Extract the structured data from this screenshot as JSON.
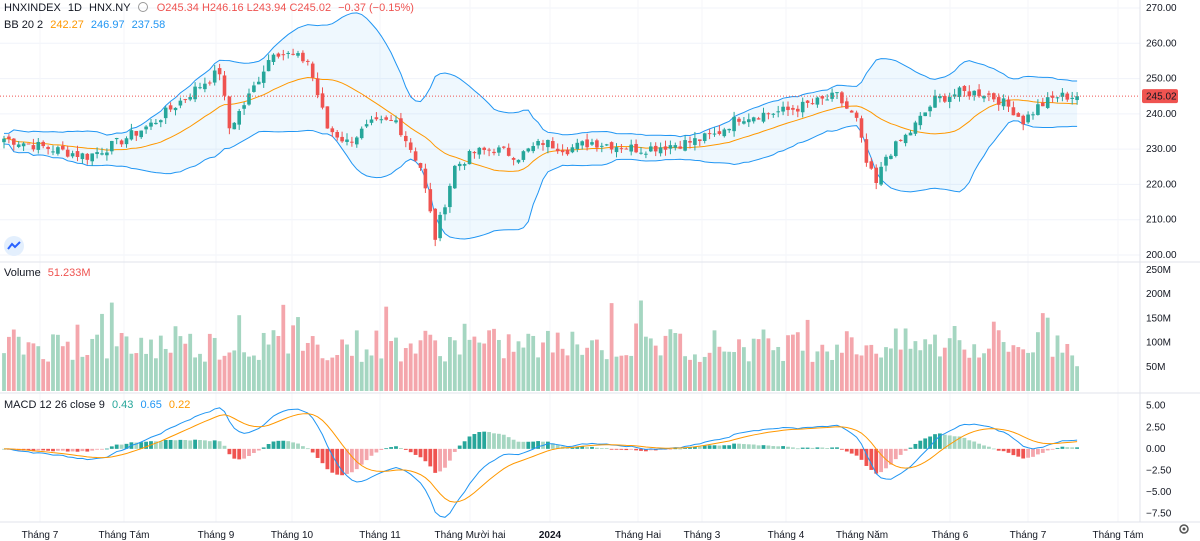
{
  "header": {
    "symbol": "HNXINDEX",
    "interval": "1D",
    "exchange": "HNX.NY",
    "open": "O245.34",
    "high": "H246.16",
    "low": "L243.94",
    "close": "C245.02",
    "change": "−0.37 (−0.15%)",
    "bb_label": "BB 20 2",
    "bb_mid": "242.27",
    "bb_upper": "246.97",
    "bb_lower": "237.58",
    "volume_label": "Volume",
    "volume_value": "51.233M",
    "macd_label": "MACD 12 26 close 9",
    "macd_hist": "0.43",
    "macd_line": "0.65",
    "macd_signal": "0.22",
    "price_badge": "245.02"
  },
  "colors": {
    "up": "#26a69a",
    "down": "#ef5350",
    "vol_up": "#a5d6c1",
    "vol_down": "#f4a6ac",
    "bb_band": "#2196f3",
    "bb_mid": "#ff9800",
    "macd_line": "#2196f3",
    "macd_signal": "#ff9800",
    "badge": "#ef5350"
  },
  "icons": {
    "logo": "tradingview-cloud-icon",
    "settings": "gear-icon"
  },
  "chart_data": [
    {
      "type": "candlestick",
      "title": "HNXINDEX 1D HNX.NY",
      "ylim": [
        200,
        270
      ],
      "y_ticks": [
        "270.00",
        "260.00",
        "250.00",
        "240.00",
        "230.00",
        "220.00",
        "210.00",
        "200.00"
      ],
      "x_ticks": [
        "Tháng 7",
        "Tháng Tám",
        "Tháng 9",
        "Tháng 10",
        "Tháng 11",
        "Tháng Mười hai",
        "2024",
        "Tháng Hai",
        "Tháng 3",
        "Tháng 4",
        "Tháng Năm",
        "Tháng 6",
        "Tháng 7",
        "Tháng Tám"
      ],
      "close_anchors": [
        [
          0,
          233
        ],
        [
          10,
          230
        ],
        [
          17,
          228
        ],
        [
          22,
          231
        ],
        [
          30,
          237
        ],
        [
          40,
          248
        ],
        [
          44,
          252
        ],
        [
          46,
          236
        ],
        [
          50,
          245
        ],
        [
          55,
          258
        ],
        [
          62,
          255
        ],
        [
          66,
          236
        ],
        [
          70,
          232
        ],
        [
          75,
          237
        ],
        [
          80,
          238
        ],
        [
          85,
          225
        ],
        [
          88,
          205
        ],
        [
          92,
          225
        ],
        [
          96,
          229
        ],
        [
          100,
          230
        ],
        [
          105,
          228
        ],
        [
          110,
          232
        ],
        [
          115,
          230
        ],
        [
          120,
          232
        ],
        [
          125,
          231
        ],
        [
          130,
          230
        ],
        [
          135,
          231
        ],
        [
          140,
          232
        ],
        [
          145,
          234
        ],
        [
          150,
          239
        ],
        [
          155,
          240
        ],
        [
          160,
          241
        ],
        [
          165,
          243
        ],
        [
          170,
          245
        ],
        [
          174,
          238
        ],
        [
          176,
          226
        ],
        [
          178,
          220
        ],
        [
          180,
          228
        ],
        [
          185,
          235
        ],
        [
          190,
          244
        ],
        [
          195,
          246
        ],
        [
          200,
          246
        ],
        [
          203,
          244
        ],
        [
          206,
          241
        ],
        [
          208,
          238
        ],
        [
          211,
          242
        ],
        [
          215,
          245
        ],
        [
          218,
          245
        ]
      ],
      "bollinger": {
        "mid": 242.27,
        "upper": 246.97,
        "lower": 237.58
      },
      "last_price": 245.02
    },
    {
      "type": "bar",
      "title": "Volume",
      "ylim": [
        0,
        250
      ],
      "y_ticks": [
        "250M",
        "200M",
        "150M",
        "100M",
        "50M"
      ],
      "last_value_m": 51.233
    },
    {
      "type": "bar",
      "title": "MACD 12 26 close 9",
      "ylim": [
        -8,
        6
      ],
      "y_ticks": [
        "5.00",
        "2.50",
        "0.00",
        "−2.50",
        "−5.00",
        "−7.50"
      ],
      "last": {
        "hist": 0.43,
        "macd": 0.65,
        "signal": 0.22
      }
    }
  ]
}
